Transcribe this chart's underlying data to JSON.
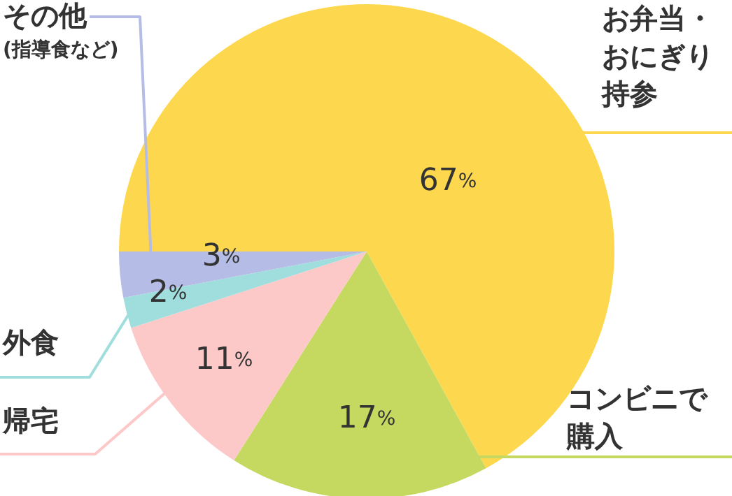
{
  "chart_data": {
    "type": "pie",
    "categories": [
      "お弁当・おにぎり持参",
      "コンビニで購入",
      "帰宅",
      "外食",
      "その他"
    ],
    "values": [
      67,
      17,
      11,
      2,
      3
    ],
    "colors": [
      "#fdd84e",
      "#c5d961",
      "#fdc8c8",
      "#a0dedd",
      "#b5bde6"
    ],
    "value_labels": [
      "67%",
      "17%",
      "11%",
      "2%",
      "3%"
    ],
    "annotations": [
      "(指導食など)"
    ]
  }
}
